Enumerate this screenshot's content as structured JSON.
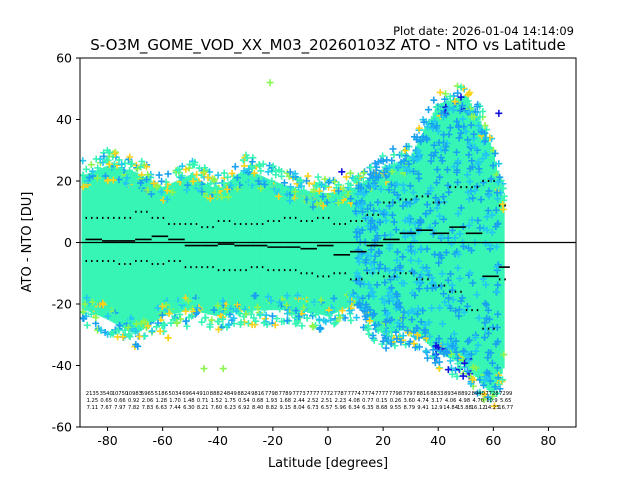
{
  "plot_date": "Plot date: 2026-01-04 14:14:09",
  "chart_data": {
    "type": "scatter",
    "title": "S-O3M_GOME_VOD_XX_M03_20260103Z ATO - NTO vs Latitude",
    "xlabel": "Latitude [degrees]",
    "ylabel": "ATO - NTO [DU]",
    "xlim": [
      -90,
      90
    ],
    "ylim": [
      -60,
      60
    ],
    "xticks": [
      -80,
      -60,
      -40,
      -20,
      0,
      20,
      40,
      60,
      80
    ],
    "yticks": [
      -60,
      -40,
      -20,
      0,
      20,
      40,
      60
    ],
    "grid": false,
    "legend": "none",
    "marker": "+",
    "colors": {
      "cloud": "#36f5b5",
      "cyan": "#22c8f0",
      "sky": "#1aa0f0",
      "lime": "#8cf550",
      "yellow": "#ffd21e",
      "gold": "#ffcc00",
      "blue": "#1010e0",
      "reference_line": "#000000",
      "median": "#000000"
    },
    "reference_line_y": 0,
    "envelope": {
      "lat": [
        -88,
        -80,
        -70,
        -60,
        -50,
        -40,
        -30,
        -20,
        -10,
        0,
        10,
        20,
        30,
        40,
        50,
        55,
        60,
        64
      ],
      "upper": [
        22,
        25,
        23,
        18,
        22,
        17,
        24,
        20,
        17,
        16,
        18,
        24,
        28,
        45,
        48,
        40,
        30,
        12
      ],
      "lower": [
        -22,
        -25,
        -30,
        -24,
        -22,
        -24,
        -22,
        -22,
        -22,
        -24,
        -20,
        -30,
        -28,
        -36,
        -40,
        -45,
        -50,
        -40
      ]
    },
    "median_segments": {
      "lat": [
        -88,
        -82,
        -76,
        -70,
        -64,
        -58,
        -52,
        -46,
        -40,
        -34,
        -28,
        -22,
        -16,
        -10,
        -4,
        2,
        8,
        14,
        20,
        26,
        32,
        38,
        44,
        50,
        56,
        62
      ],
      "values": [
        1,
        0.5,
        0.5,
        1,
        2,
        1,
        -1,
        -1,
        -0.5,
        -1,
        -1,
        -1.5,
        -1.5,
        -2,
        -1,
        -4,
        -3,
        -1,
        1,
        3,
        4,
        3,
        5,
        3,
        -11,
        -8
      ]
    },
    "upper_dotted": {
      "lat": [
        -88,
        -82,
        -76,
        -70,
        -64,
        -58,
        -52,
        -46,
        -40,
        -34,
        -28,
        -22,
        -16,
        -10,
        -4,
        2,
        8,
        14,
        20,
        26,
        32,
        38,
        44,
        50,
        56,
        62
      ],
      "values": [
        8,
        8,
        8,
        10,
        8,
        6,
        6,
        5,
        7,
        6,
        6,
        7,
        8,
        7,
        8,
        6,
        7,
        9,
        13,
        14,
        15,
        13,
        18,
        18,
        20,
        12
      ]
    },
    "lower_dotted": {
      "lat": [
        -88,
        -82,
        -76,
        -70,
        -64,
        -58,
        -52,
        -46,
        -40,
        -34,
        -28,
        -22,
        -16,
        -10,
        -4,
        2,
        8,
        14,
        20,
        26,
        32,
        38,
        44,
        50,
        56,
        62
      ],
      "values": [
        -6,
        -6,
        -7,
        -6,
        -7,
        -6,
        -8,
        -8,
        -9,
        -9,
        -8,
        -9,
        -9,
        -10,
        -11,
        -10,
        -12,
        -10,
        -11,
        -10,
        -12,
        -14,
        -16,
        -22,
        -28,
        -12
      ]
    },
    "stats_rows": [
      [
        "2135",
        "3540",
        "10750",
        "10983",
        "5965",
        "5186",
        "5034",
        "6964",
        "4910",
        "8882",
        "4849",
        "8824",
        "9816",
        "7798",
        "7789",
        "7773",
        "7777",
        "7772",
        "7787",
        "7774",
        "7774",
        "7777",
        "7798",
        "7797",
        "8816",
        "8833",
        "8934",
        "8892",
        "8940",
        "7728",
        "7299"
      ],
      [
        "1.25",
        "0.65",
        "0.66",
        "0.92",
        "2.06",
        "1.28",
        "1.70",
        "1.48",
        "0.71",
        "1.52",
        "1.75",
        "0.54",
        "0.68",
        "1.93",
        "1.68",
        "2.44",
        "2.52",
        "2.51",
        "2.23",
        "4.08",
        "0.77",
        "0.15",
        "0.26",
        "3.60",
        "4.74",
        "3.17",
        "4.06",
        "4.98",
        "4.70",
        "10.9",
        "5.65"
      ],
      [
        "7.11",
        "7.67",
        "7.97",
        "7.82",
        "7.83",
        "6.63",
        "7.44",
        "6.30",
        "8.21",
        "7.60",
        "6.23",
        "6.92",
        "8.40",
        "8.82",
        "9.15",
        "8.04",
        "6.73",
        "6.57",
        "5.96",
        "6.34",
        "6.35",
        "8.68",
        "9.55",
        "8.79",
        "9.41",
        "12.9",
        "14.84",
        "15.88",
        "16.12",
        "14.23",
        "16.77"
      ]
    ]
  }
}
